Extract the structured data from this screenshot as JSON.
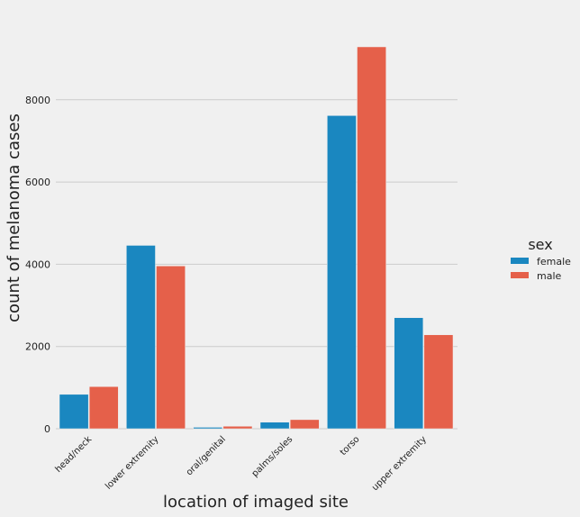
{
  "chart_data": {
    "type": "bar",
    "categories": [
      "head/neck",
      "lower extremity",
      "oral/genital",
      "palms/soles",
      "torso",
      "upper extremity"
    ],
    "series": [
      {
        "name": "female",
        "values": [
          836,
          4459,
          35,
          160,
          7616,
          2701
        ],
        "color": "#1a87c0"
      },
      {
        "name": "male",
        "values": [
          1025,
          3959,
          60,
          221,
          9288,
          2285
        ],
        "color": "#e5604a"
      }
    ],
    "xlabel": "location of imaged site",
    "ylabel": "count of melanoma cases",
    "ylim": [
      0,
      9770
    ],
    "yticks": [
      0,
      2000,
      4000,
      6000,
      8000
    ],
    "ytick_labels": [
      "0",
      "2000",
      "4000",
      "6000",
      "8000"
    ],
    "grid": true,
    "legend": {
      "title": "sex",
      "position": "right"
    }
  }
}
